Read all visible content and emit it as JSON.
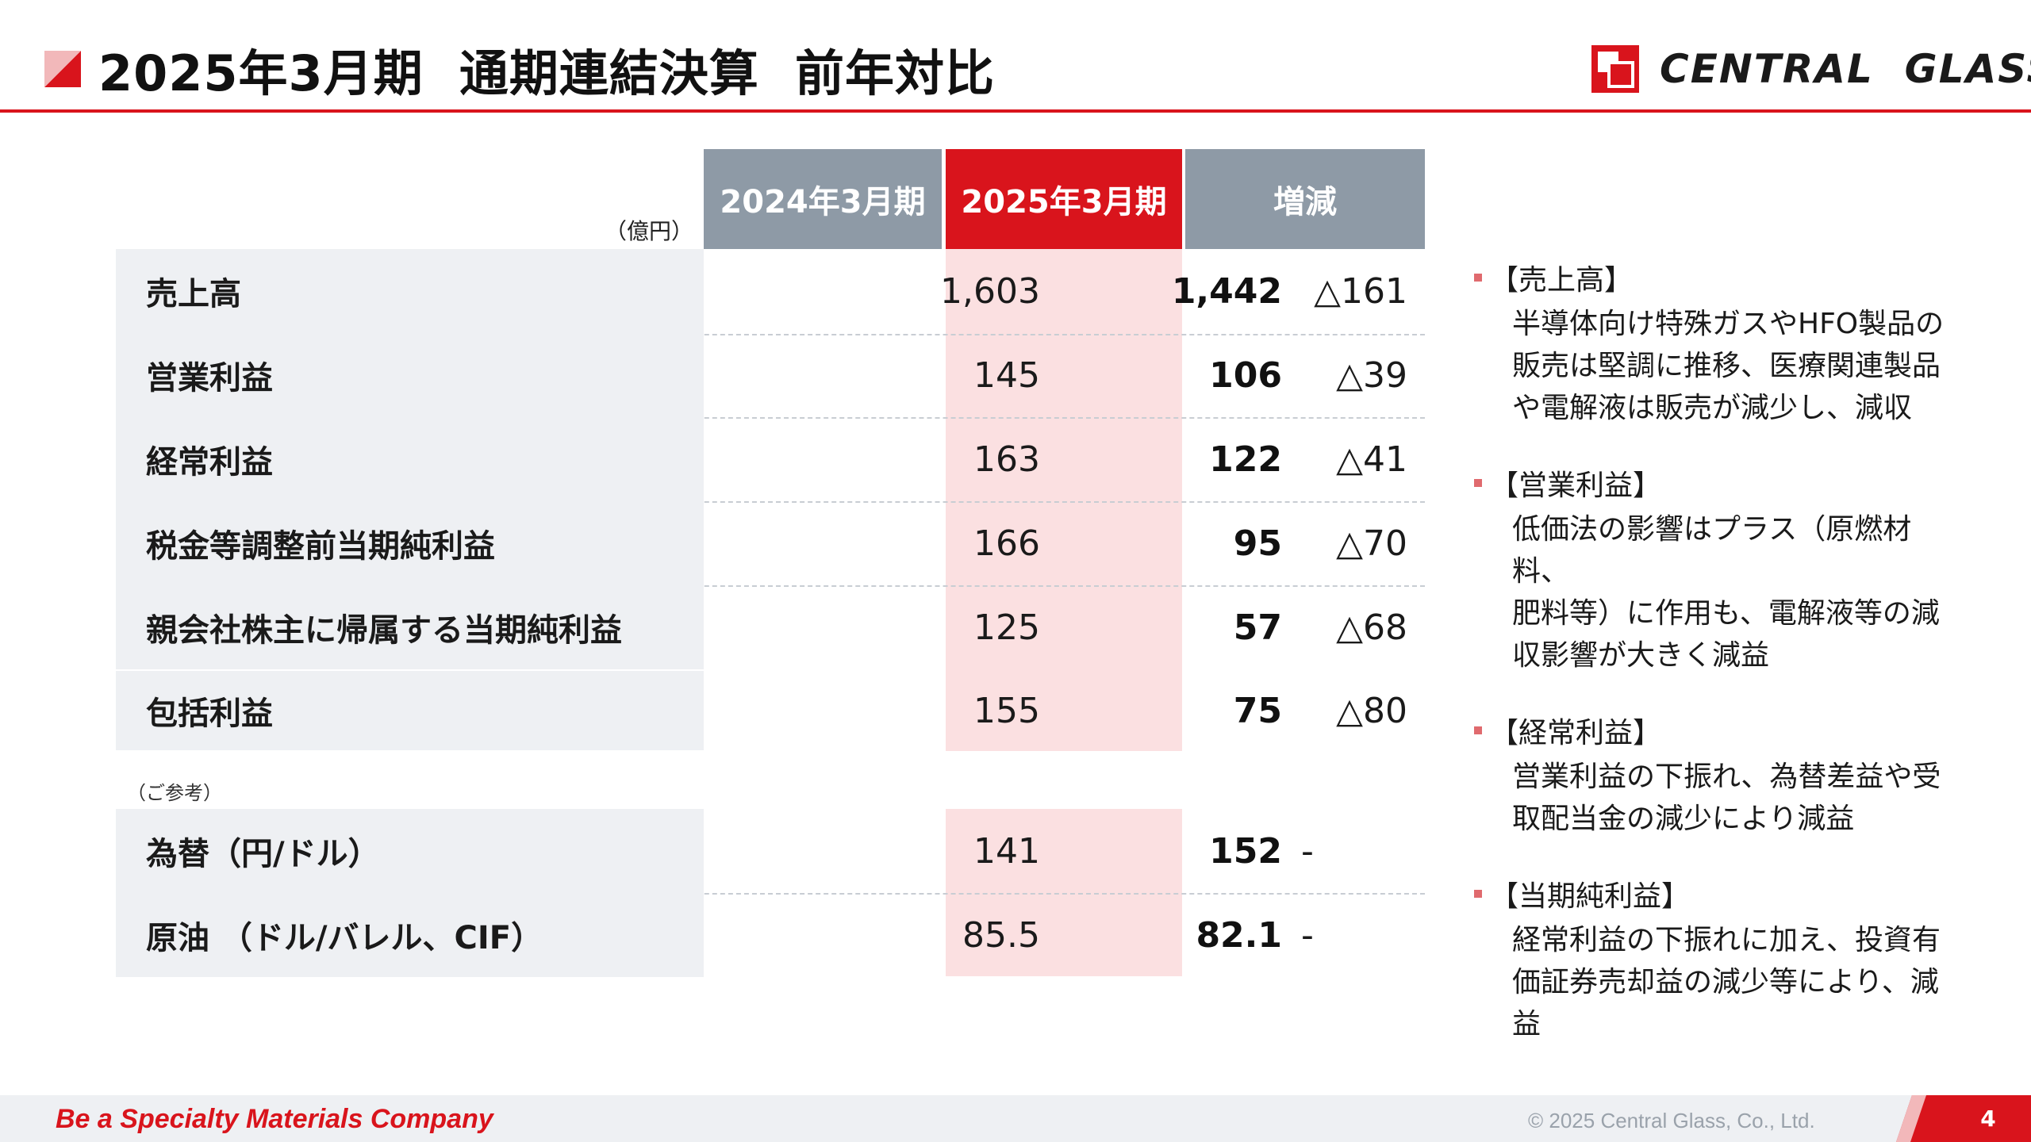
{
  "header": {
    "title": "2025年3月期  通期連結決算  前年対比",
    "logo_text": "CENTRAL  GLASS"
  },
  "table": {
    "unit": "（億円）",
    "columns": [
      "2024年3月期",
      "2025年3月期",
      "増減"
    ],
    "rows": [
      {
        "label": "売上高",
        "prev": "1,603",
        "cur": "1,442",
        "diff": "△161"
      },
      {
        "label": "営業利益",
        "prev": "145",
        "cur": "106",
        "diff": "△39"
      },
      {
        "label": "経常利益",
        "prev": "163",
        "cur": "122",
        "diff": "△41"
      },
      {
        "label": "税金等調整前当期純利益",
        "prev": "166",
        "cur": "95",
        "diff": "△70"
      },
      {
        "label": "親会社株主に帰属する当期純利益",
        "prev": "125",
        "cur": "57",
        "diff": "△68"
      },
      {
        "label": "包括利益",
        "prev": "155",
        "cur": "75",
        "diff": "△80"
      }
    ],
    "reference_label": "（ご参考）",
    "reference_rows": [
      {
        "label": "為替（円/ドル）",
        "prev": "141",
        "cur": "152",
        "diff": "-"
      },
      {
        "label": "原油 （ドル/バレル、CIF）",
        "prev": "85.5",
        "cur": "82.1",
        "diff": "-"
      }
    ]
  },
  "notes": [
    {
      "head": "【売上高】",
      "lines": [
        "半導体向け特殊ガスやHFO製品の",
        "販売は堅調に推移、医療関連製品",
        "や電解液は販売が減少し、減収"
      ]
    },
    {
      "head": "【営業利益】",
      "lines": [
        "低価法の影響はプラス（原燃材料、",
        "肥料等）に作用も、電解液等の減",
        "収影響が大きく減益"
      ]
    },
    {
      "head": "【経常利益】",
      "lines": [
        "営業利益の下振れ、為替差益や受",
        "取配当金の減少により減益"
      ]
    },
    {
      "head": "【当期純利益】",
      "lines": [
        "経常利益の下振れに加え、投資有",
        "価証券売却益の減少等により、減",
        "益"
      ]
    }
  ],
  "footer": {
    "slogan": "Be a Specialty Materials Company",
    "copyright": "© 2025 Central Glass, Co., Ltd.",
    "page_number": "4"
  },
  "colors": {
    "brand_red": "#d9141c",
    "header_gray": "#8e9aa6",
    "highlight_pink": "#fbe0e1",
    "label_bg": "#eef0f3"
  }
}
